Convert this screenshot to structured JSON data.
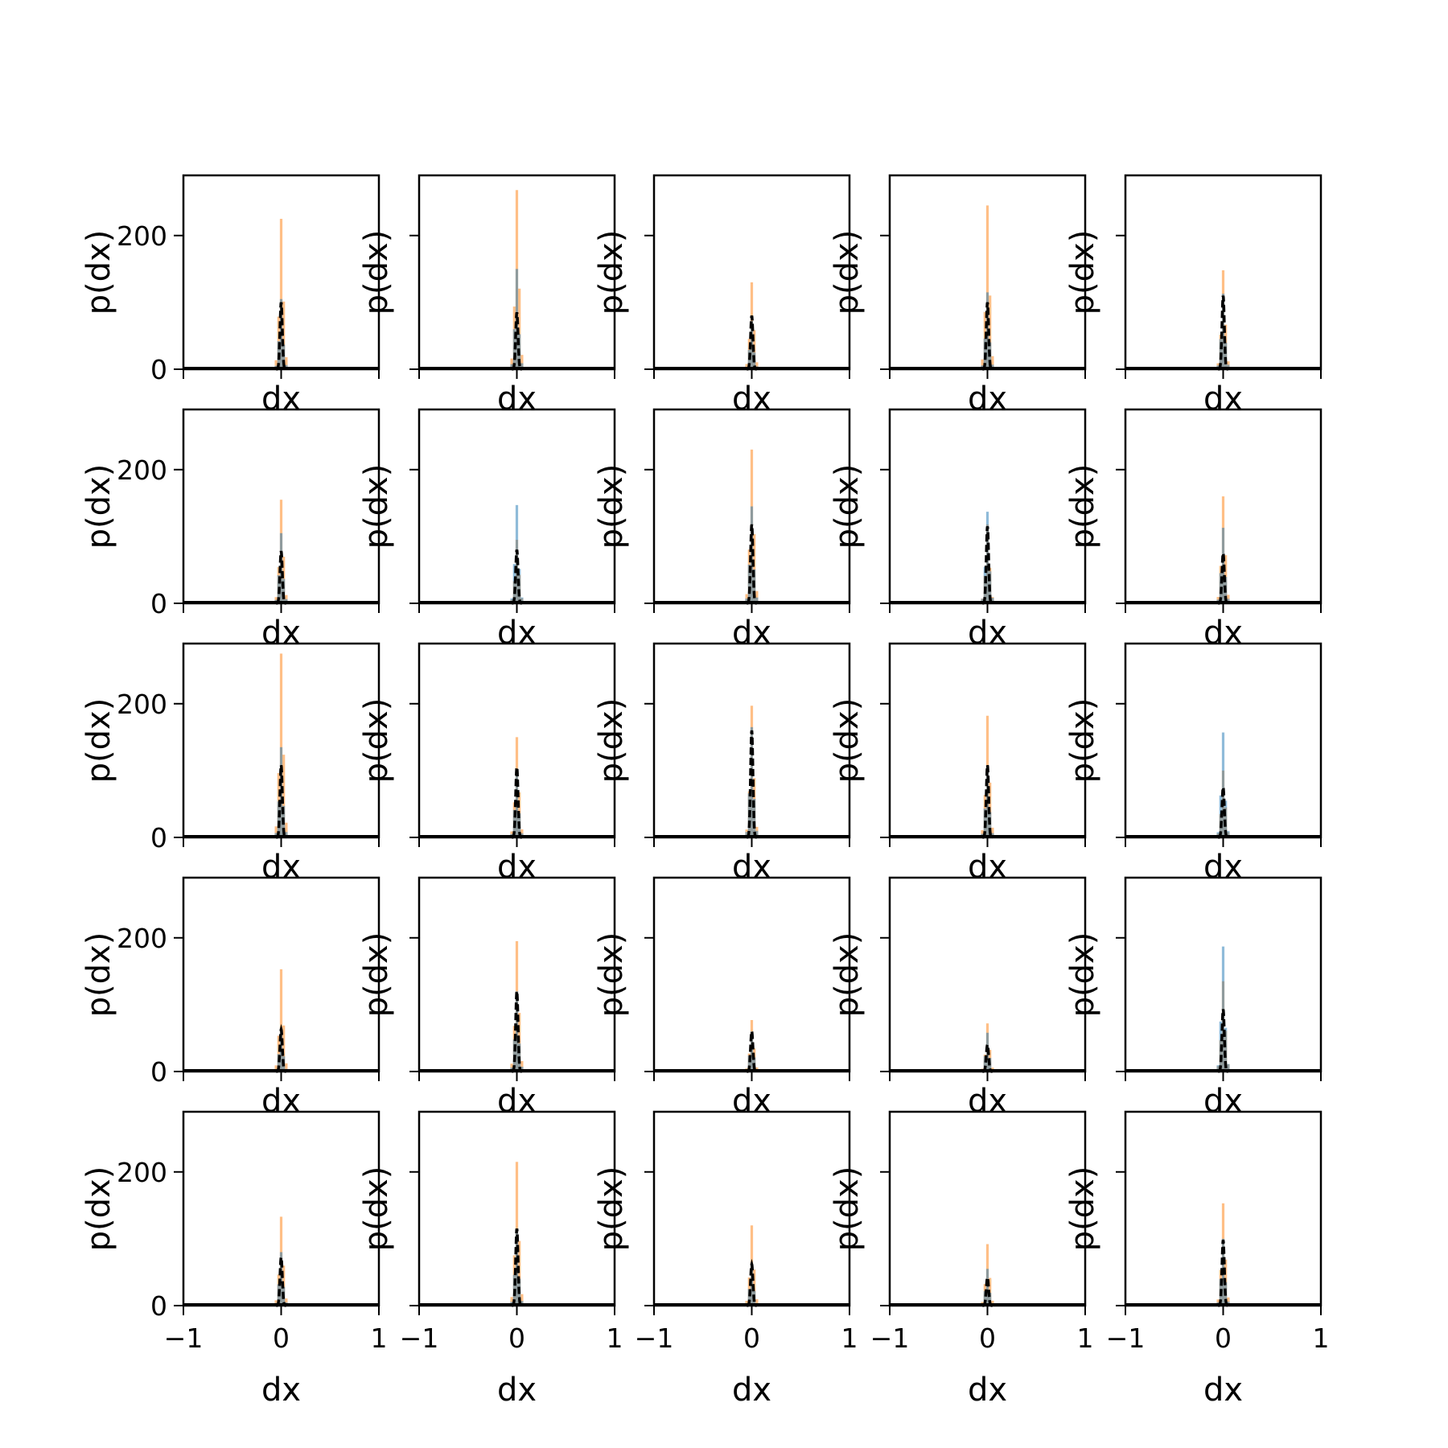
{
  "chart_data": {
    "type": "histogram-grid",
    "rows": 5,
    "cols": 5,
    "xlabel": "dx",
    "ylabel": "p(dx)",
    "xlim": [
      -1,
      1
    ],
    "ylim": [
      0,
      290
    ],
    "x_ticks": [
      -1,
      0,
      1
    ],
    "x_tick_labels": [
      "−1",
      "0",
      "1"
    ],
    "y_ticks": [
      0,
      200
    ],
    "y_tick_labels": [
      "0",
      "200"
    ],
    "colors": {
      "blue": "#1f77b4",
      "orange": "#ff7f0e",
      "curve": "#000000"
    },
    "panels": [
      {
        "blue": 105,
        "orange": 225,
        "black": 100
      },
      {
        "blue": 150,
        "orange": 268,
        "black": 85
      },
      {
        "blue": 72,
        "orange": 130,
        "black": 80
      },
      {
        "blue": 115,
        "orange": 245,
        "black": 100
      },
      {
        "blue": 113,
        "orange": 148,
        "black": 110
      },
      {
        "blue": 105,
        "orange": 155,
        "black": 78
      },
      {
        "blue": 147,
        "orange": 95,
        "black": 80
      },
      {
        "blue": 145,
        "orange": 230,
        "black": 118
      },
      {
        "blue": 137,
        "orange": 118,
        "black": 115
      },
      {
        "blue": 113,
        "orange": 160,
        "black": 75
      },
      {
        "blue": 135,
        "orange": 275,
        "black": 108
      },
      {
        "blue": 103,
        "orange": 150,
        "black": 105
      },
      {
        "blue": 165,
        "orange": 197,
        "black": 160
      },
      {
        "blue": 108,
        "orange": 182,
        "black": 108
      },
      {
        "blue": 157,
        "orange": 100,
        "black": 75
      },
      {
        "blue": 65,
        "orange": 153,
        "black": 63
      },
      {
        "blue": 120,
        "orange": 195,
        "black": 120
      },
      {
        "blue": 60,
        "orange": 77,
        "black": 60
      },
      {
        "blue": 58,
        "orange": 72,
        "black": 40
      },
      {
        "blue": 187,
        "orange": 135,
        "black": 93
      },
      {
        "blue": 80,
        "orange": 133,
        "black": 72
      },
      {
        "blue": 115,
        "orange": 215,
        "black": 115
      },
      {
        "blue": 62,
        "orange": 120,
        "black": 62
      },
      {
        "blue": 55,
        "orange": 92,
        "black": 42
      },
      {
        "blue": 100,
        "orange": 153,
        "black": 98
      }
    ]
  }
}
